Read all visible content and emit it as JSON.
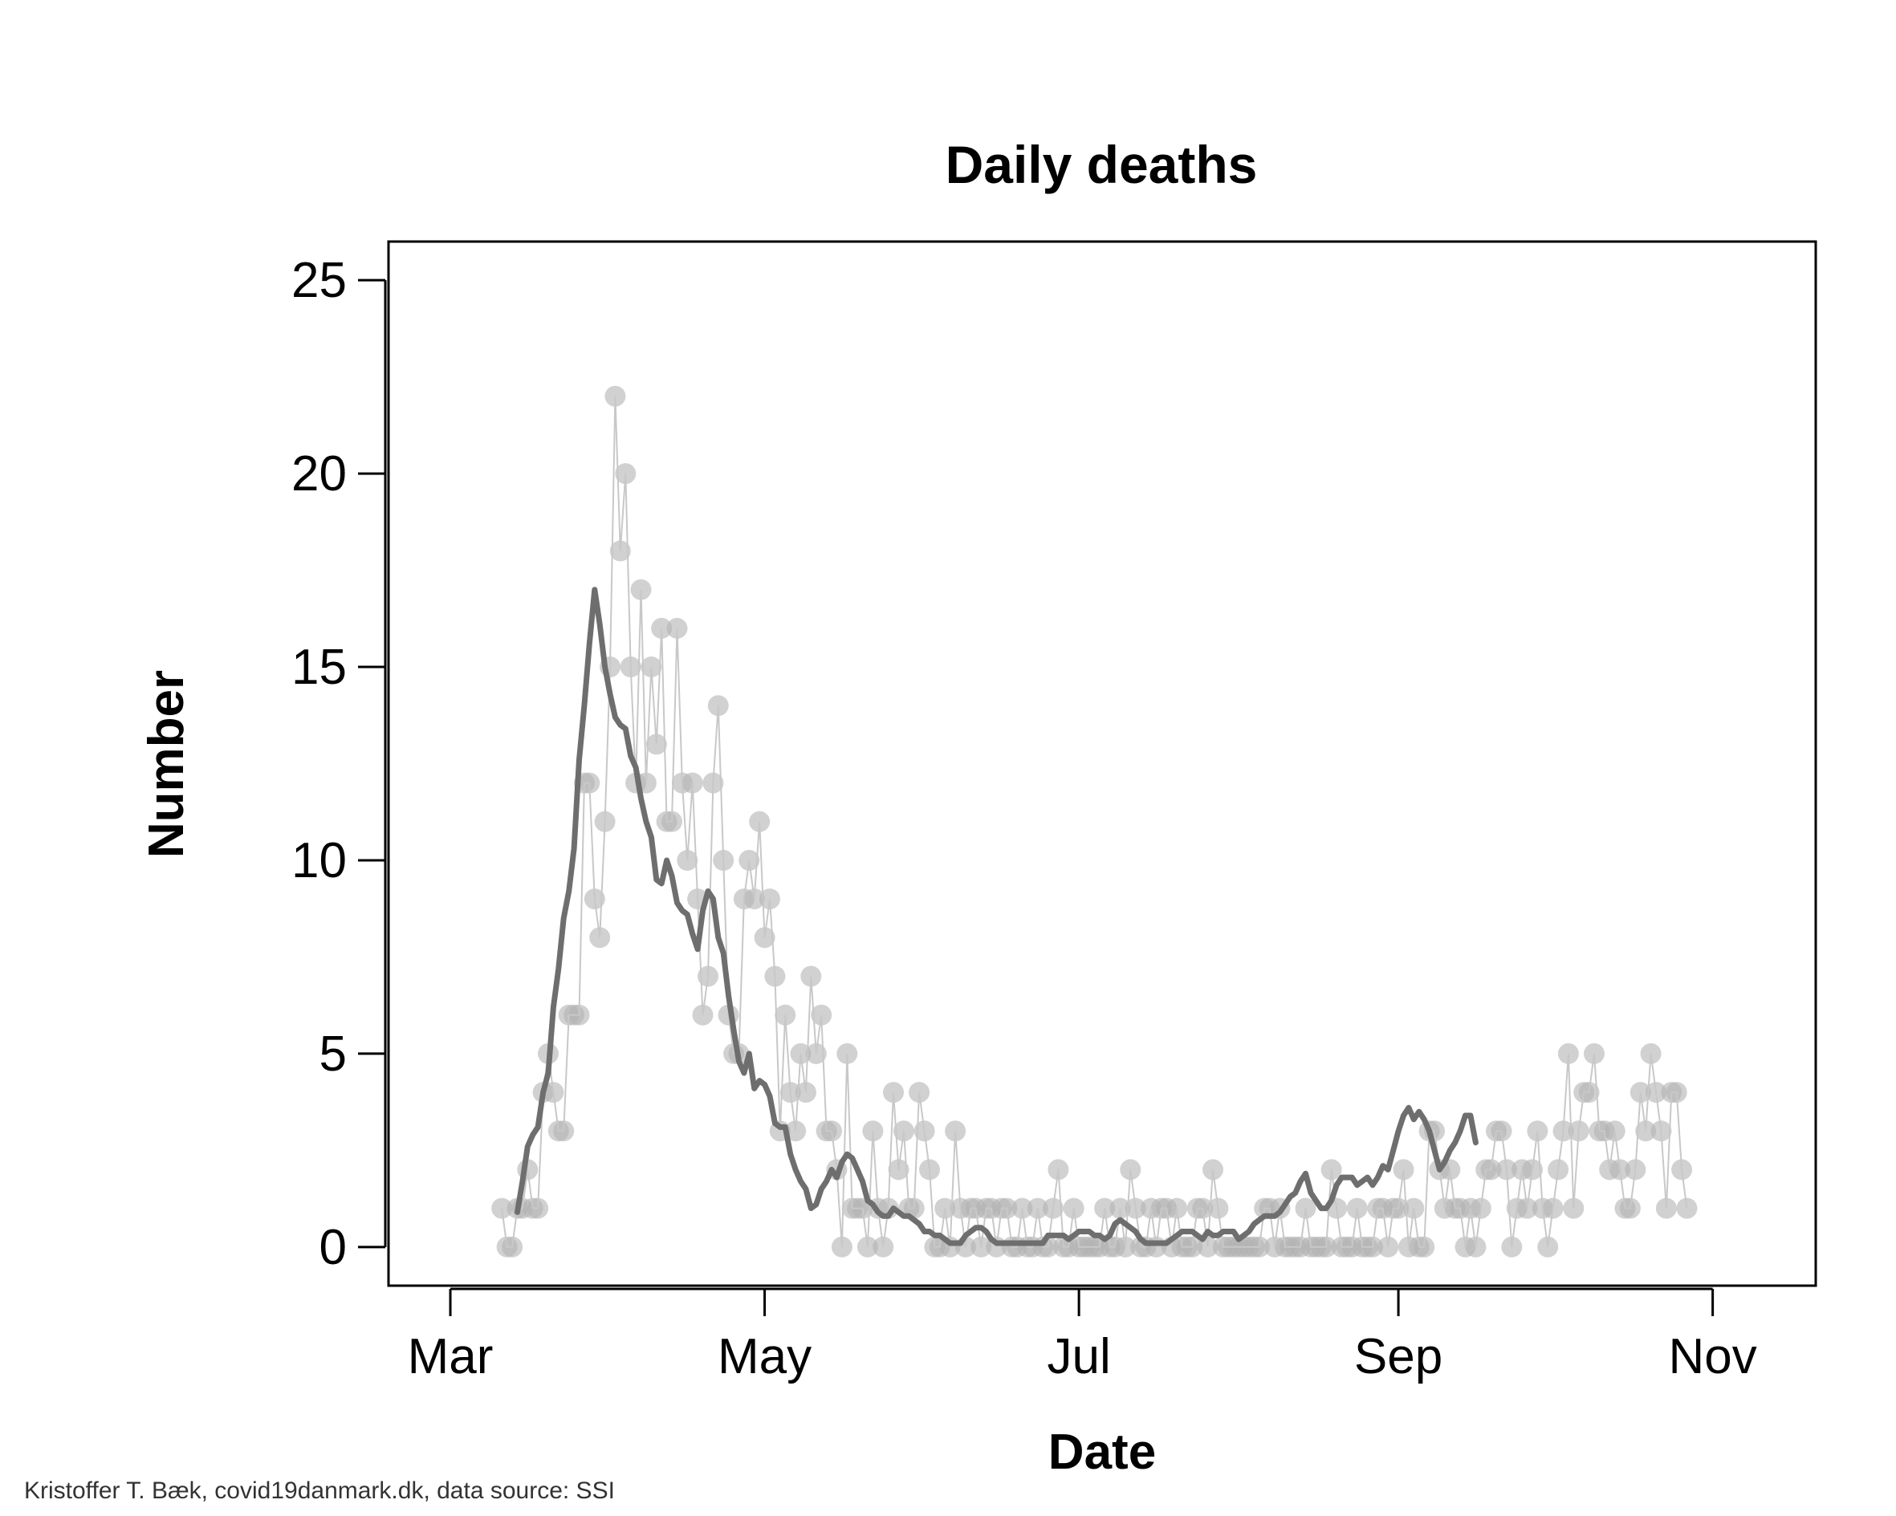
{
  "chart_data": {
    "type": "scatter",
    "title": "Daily deaths",
    "xlabel": "Date",
    "ylabel": "Number",
    "ylim": [
      -1,
      26
    ],
    "yticks": [
      0,
      5,
      10,
      15,
      20,
      25
    ],
    "xlim": [
      "2020-02-18",
      "2020-11-21"
    ],
    "xticks": [
      {
        "date": "2020-03-01",
        "label": "Mar"
      },
      {
        "date": "2020-05-01",
        "label": "May"
      },
      {
        "date": "2020-07-01",
        "label": "Jul"
      },
      {
        "date": "2020-09-01",
        "label": "Sep"
      },
      {
        "date": "2020-11-01",
        "label": "Nov"
      }
    ],
    "grid": false,
    "caption": "Kristoffer T. Bæk, covid19danmark.dk, data source: SSI",
    "series": [
      {
        "kind": "daily points",
        "color": "#b3b3b3",
        "start_date": "2020-03-11",
        "values": [
          1,
          0,
          0,
          1,
          1,
          2,
          1,
          1,
          4,
          5,
          4,
          3,
          3,
          6,
          6,
          6,
          12,
          12,
          9,
          8,
          11,
          15,
          22,
          18,
          20,
          15,
          12,
          17,
          12,
          15,
          13,
          16,
          11,
          11,
          16,
          12,
          10,
          12,
          9,
          6,
          7,
          12,
          14,
          10,
          6,
          5,
          5,
          9,
          10,
          9,
          11,
          8,
          9,
          7,
          3,
          6,
          4,
          3,
          5,
          4,
          7,
          5,
          6,
          3,
          3,
          2,
          0,
          5,
          1,
          1,
          1,
          0,
          3,
          1,
          0,
          1,
          4,
          2,
          3,
          1,
          1,
          4,
          3,
          2,
          0,
          0,
          1,
          0,
          3,
          1,
          0,
          1,
          1,
          0,
          1,
          1,
          0,
          1,
          1,
          0,
          0,
          1,
          0,
          0,
          1,
          0,
          0,
          1,
          2,
          0,
          0,
          1,
          0,
          0,
          0,
          0,
          0,
          1,
          0,
          0,
          1,
          0,
          2,
          1,
          0,
          0,
          1,
          0,
          1,
          1,
          0,
          1,
          0,
          0,
          0,
          1,
          1,
          0,
          2,
          1,
          0,
          0,
          0,
          0,
          0,
          0,
          0,
          0,
          1,
          1,
          0,
          1,
          0,
          0,
          0,
          0,
          1,
          0,
          0,
          0,
          0,
          2,
          1,
          0,
          0,
          0,
          1,
          0,
          0,
          0,
          1,
          1,
          0,
          1,
          1,
          2,
          0,
          1,
          0,
          0,
          3,
          3,
          2,
          1,
          2,
          1,
          1,
          0,
          1,
          0,
          1,
          2,
          2,
          3,
          3,
          2,
          0,
          1,
          2,
          1,
          2,
          3,
          1,
          0,
          1,
          2,
          3,
          5,
          1,
          3,
          4,
          4,
          5,
          3,
          3,
          2,
          3,
          2,
          1,
          1,
          2,
          4,
          3,
          5,
          4,
          3,
          1,
          4,
          4,
          2,
          1
        ]
      },
      {
        "kind": "7-day rolling average",
        "color": "#6e6e6e",
        "start_date": "2020-03-14",
        "values": [
          0.9,
          1.7,
          2.6,
          2.9,
          3.1,
          4.0,
          4.5,
          6.2,
          7.2,
          8.5,
          9.2,
          10.3,
          12.6,
          14.0,
          15.6,
          17.0,
          16.1,
          15.0,
          14.3,
          13.7,
          13.5,
          13.4,
          12.7,
          12.4,
          11.6,
          11.0,
          10.6,
          9.5,
          9.4,
          10.0,
          9.6,
          8.9,
          8.7,
          8.6,
          8.1,
          7.7,
          8.7,
          9.2,
          9.0,
          8.0,
          7.6,
          6.5,
          5.6,
          4.8,
          4.5,
          5.0,
          4.1,
          4.3,
          4.2,
          3.9,
          3.2,
          3.1,
          3.1,
          2.4,
          2.0,
          1.7,
          1.5,
          1.0,
          1.1,
          1.5,
          1.7,
          2.0,
          1.8,
          2.2,
          2.4,
          2.3,
          2.0,
          1.7,
          1.2,
          1.1,
          0.9,
          0.8,
          0.8,
          1.0,
          0.9,
          0.8,
          0.8,
          0.7,
          0.6,
          0.4,
          0.4,
          0.3,
          0.3,
          0.2,
          0.1,
          0.1,
          0.1,
          0.3,
          0.4,
          0.5,
          0.5,
          0.4,
          0.2,
          0.1,
          0.1,
          0.1,
          0.1,
          0.1,
          0.1,
          0.1,
          0.1,
          0.1,
          0.1,
          0.3,
          0.3,
          0.3,
          0.3,
          0.2,
          0.3,
          0.4,
          0.4,
          0.4,
          0.3,
          0.3,
          0.2,
          0.3,
          0.6,
          0.7,
          0.6,
          0.5,
          0.4,
          0.2,
          0.1,
          0.1,
          0.1,
          0.1,
          0.1,
          0.2,
          0.3,
          0.4,
          0.4,
          0.4,
          0.3,
          0.2,
          0.4,
          0.3,
          0.3,
          0.4,
          0.4,
          0.4,
          0.2,
          0.3,
          0.4,
          0.6,
          0.7,
          0.8,
          0.8,
          0.8,
          0.9,
          1.1,
          1.3,
          1.4,
          1.7,
          1.9,
          1.4,
          1.2,
          1.0,
          1.0,
          1.2,
          1.6,
          1.8,
          1.8,
          1.8,
          1.6,
          1.7,
          1.8,
          1.6,
          1.8,
          2.1,
          2.0,
          2.5,
          3.0,
          3.4,
          3.6,
          3.3,
          3.5,
          3.3,
          3.0,
          2.5,
          2.0,
          2.2,
          2.5,
          2.7,
          3.0,
          3.4,
          3.4,
          2.7
        ]
      }
    ]
  }
}
